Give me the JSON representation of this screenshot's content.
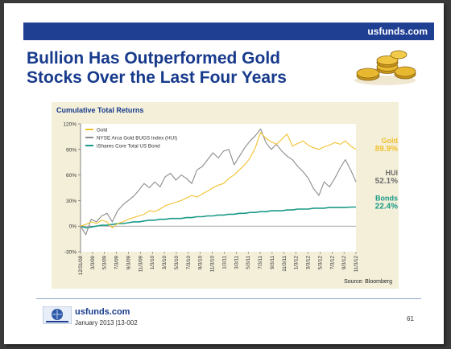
{
  "header": {
    "site": "usfunds.com"
  },
  "slide": {
    "title_line1": "Bullion Has Outperformed Gold",
    "title_line2": "Stocks Over the Last Four Years",
    "image": "gold-coins-image"
  },
  "chart_data": {
    "type": "line",
    "title": "Cumulative Total Returns",
    "x_tick_labels": [
      "12/31/08",
      "3/3/09",
      "5/3/09",
      "7/3/09",
      "9/3/09",
      "11/3/09",
      "1/3/10",
      "3/3/10",
      "5/3/10",
      "7/3/10",
      "9/3/10",
      "11/3/10",
      "1/3/11",
      "3/3/11",
      "5/3/11",
      "7/3/11",
      "9/3/11",
      "11/3/11",
      "1/3/12",
      "3/3/12",
      "5/3/12",
      "7/3/12",
      "9/3/12",
      "11/3/12"
    ],
    "y_ticks": [
      "120%",
      "90%",
      "60%",
      "30%",
      "0%",
      "-30%"
    ],
    "ylim": [
      -30,
      120
    ],
    "grid": false,
    "legend_position": "top-left",
    "series": [
      {
        "name": "Gold",
        "color": "#f2c12e",
        "end_label": "Gold",
        "end_value_label": "89.9%",
        "values": [
          0,
          2,
          5,
          3,
          7,
          5,
          -2,
          3,
          5,
          8,
          10,
          12,
          14,
          18,
          17,
          20,
          24,
          26,
          28,
          30,
          33,
          36,
          34,
          38,
          41,
          45,
          48,
          50,
          56,
          60,
          66,
          72,
          80,
          92,
          110,
          103,
          99,
          96,
          102,
          108,
          94,
          97,
          100,
          95,
          92,
          90,
          93,
          95,
          98,
          96,
          100,
          94,
          90
        ]
      },
      {
        "name": "NYSE Arca Gold BUGS Index (HUI)",
        "color": "#8c8c8c",
        "end_label": "HUI",
        "end_value_label": "52.1%",
        "values": [
          0,
          -10,
          8,
          5,
          12,
          15,
          5,
          18,
          25,
          30,
          35,
          42,
          50,
          45,
          52,
          46,
          58,
          62,
          54,
          60,
          56,
          50,
          66,
          70,
          78,
          86,
          80,
          88,
          90,
          72,
          82,
          92,
          100,
          106,
          114,
          98,
          90,
          96,
          88,
          82,
          78,
          70,
          64,
          56,
          44,
          36,
          52,
          46,
          56,
          68,
          78,
          66,
          52
        ]
      },
      {
        "name": "iShares Core Total US Bond",
        "color": "#1a9a87",
        "end_label": "Bonds",
        "end_value_label": "22.4%",
        "values": [
          0,
          -2,
          -1,
          0,
          1,
          1,
          2,
          3,
          3,
          4,
          5,
          5,
          6,
          7,
          7,
          8,
          8,
          9,
          9,
          9,
          10,
          10,
          11,
          11,
          12,
          12,
          13,
          13,
          14,
          14,
          15,
          15,
          16,
          16,
          17,
          17,
          18,
          18,
          18,
          19,
          19,
          20,
          20,
          20,
          21,
          21,
          21,
          22,
          22,
          22,
          22,
          22.4,
          22.4
        ]
      }
    ],
    "source": "Source: Bloomberg"
  },
  "footer": {
    "url": "usfunds.com",
    "date": "January 2013 |13-002",
    "page": "61"
  }
}
